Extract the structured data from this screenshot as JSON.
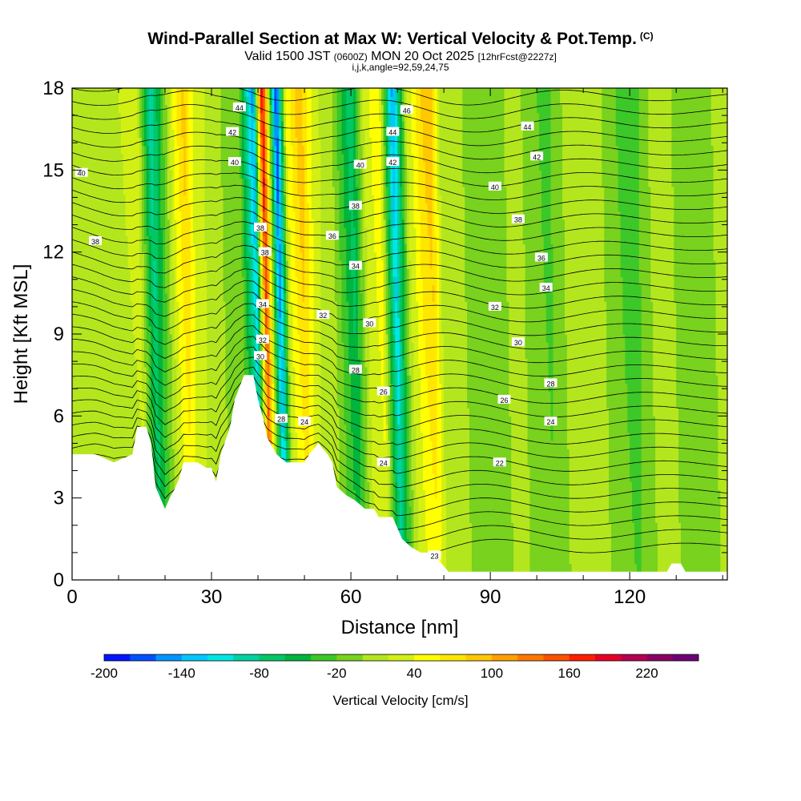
{
  "title": {
    "main": "Wind-Parallel Section at Max W: Vertical Velocity & Pot.Temp.",
    "copyright": "(C)",
    "valid_prefix": "Valid 1500 JST",
    "valid_utc": "(0600Z)",
    "valid_date": "MON 20 Oct 2025",
    "forecast": "[12hrFcst@2227z]",
    "indices": "i,j,k,angle=92,59,24,75"
  },
  "chart_data": {
    "type": "heatmap",
    "title": "Wind-Parallel Section at Max W: Vertical Velocity & Pot.Temp.",
    "xlabel": "Distance [nm]",
    "ylabel": "Height [Kft MSL]",
    "xlim": [
      0,
      141
    ],
    "ylim": [
      0,
      18
    ],
    "xticks": [
      0,
      30,
      60,
      90,
      120
    ],
    "yticks": [
      0,
      3,
      6,
      9,
      12,
      15,
      18
    ],
    "grid": false,
    "colorbar": {
      "label": "Vertical Velocity [cm/s]",
      "ticks": [
        -200,
        -140,
        -80,
        -20,
        40,
        100,
        160,
        220
      ],
      "levels": [
        -200,
        -180,
        -160,
        -140,
        -120,
        -100,
        -80,
        -60,
        -40,
        -20,
        0,
        20,
        40,
        60,
        80,
        100,
        120,
        140,
        160,
        180,
        200,
        220,
        240
      ],
      "colors": [
        "#0014ff",
        "#0050ff",
        "#0096ff",
        "#00c8ff",
        "#00e6e6",
        "#00d2a0",
        "#00c864",
        "#00b43c",
        "#3cc828",
        "#78d21e",
        "#b4e61e",
        "#d2f014",
        "#ffff00",
        "#ffe600",
        "#ffc800",
        "#ffa000",
        "#ff7800",
        "#ff5000",
        "#ff1e00",
        "#e60028",
        "#b40050",
        "#8c0064",
        "#6e0078"
      ]
    },
    "terrain": [
      [
        0,
        4.6
      ],
      [
        5,
        4.6
      ],
      [
        9,
        4.3
      ],
      [
        13,
        4.6
      ],
      [
        14,
        5.6
      ],
      [
        16,
        5.6
      ],
      [
        17,
        5.0
      ],
      [
        18,
        3.4
      ],
      [
        19,
        3.0
      ],
      [
        20,
        2.6
      ],
      [
        21,
        3.0
      ],
      [
        22,
        3.3
      ],
      [
        23,
        3.7
      ],
      [
        24,
        4.3
      ],
      [
        27,
        4.3
      ],
      [
        29,
        4.1
      ],
      [
        30,
        4.1
      ],
      [
        31,
        3.6
      ],
      [
        32,
        4.6
      ],
      [
        34,
        5.6
      ],
      [
        35,
        6.6
      ],
      [
        37,
        7.5
      ],
      [
        39,
        7.5
      ],
      [
        40,
        6.6
      ],
      [
        41,
        6.0
      ],
      [
        42,
        5.2
      ],
      [
        44,
        4.6
      ],
      [
        46,
        4.3
      ],
      [
        50,
        4.3
      ],
      [
        51,
        4.6
      ],
      [
        53,
        5.0
      ],
      [
        55,
        4.6
      ],
      [
        56,
        4.3
      ],
      [
        57,
        3.4
      ],
      [
        59,
        3.1
      ],
      [
        61,
        2.9
      ],
      [
        63,
        2.6
      ],
      [
        65,
        2.6
      ],
      [
        66,
        2.3
      ],
      [
        69,
        2.3
      ],
      [
        71,
        1.5
      ],
      [
        73,
        1.2
      ],
      [
        75,
        1.0
      ],
      [
        78,
        1.0
      ],
      [
        79,
        0.7
      ],
      [
        81,
        0.3
      ],
      [
        90,
        0.3
      ],
      [
        128,
        0.3
      ],
      [
        129,
        0.6
      ],
      [
        131,
        0.6
      ],
      [
        132,
        0.3
      ],
      [
        141,
        0.3
      ]
    ],
    "w_bands": [
      {
        "x": 0,
        "w": 0
      },
      {
        "x": 8,
        "w": 12
      },
      {
        "x": 15,
        "w": 30
      },
      {
        "x": 18,
        "w": -100
      },
      {
        "x": 23,
        "w": 50
      },
      {
        "x": 25,
        "w": 90
      },
      {
        "x": 27,
        "w": 40
      },
      {
        "x": 31,
        "w": 10
      },
      {
        "x": 37,
        "w": -20
      },
      {
        "x": 40,
        "w": -150
      },
      {
        "x": 42,
        "w": 200
      },
      {
        "x": 45,
        "w": -190
      },
      {
        "x": 47,
        "w": 40
      },
      {
        "x": 50,
        "w": 100
      },
      {
        "x": 53,
        "w": 30
      },
      {
        "x": 57,
        "w": 0
      },
      {
        "x": 61,
        "w": -80
      },
      {
        "x": 64,
        "w": 30
      },
      {
        "x": 67,
        "w": 60
      },
      {
        "x": 70,
        "w": -150
      },
      {
        "x": 73,
        "w": 20
      },
      {
        "x": 76,
        "w": 80
      },
      {
        "x": 78,
        "w": 100
      },
      {
        "x": 80,
        "w": 20
      },
      {
        "x": 85,
        "w": 0
      },
      {
        "x": 90,
        "w": -20
      },
      {
        "x": 96,
        "w": 10
      },
      {
        "x": 103,
        "w": -30
      },
      {
        "x": 108,
        "w": 15
      },
      {
        "x": 115,
        "w": 0
      },
      {
        "x": 121,
        "w": -40
      },
      {
        "x": 126,
        "w": 10
      },
      {
        "x": 134,
        "w": -10
      },
      {
        "x": 141,
        "w": 5
      }
    ],
    "theta_labels": [
      {
        "text": "44",
        "x": 36,
        "y": 17.3
      },
      {
        "text": "42",
        "x": 34.5,
        "y": 16.4
      },
      {
        "text": "40",
        "x": 35,
        "y": 15.3
      },
      {
        "text": "40",
        "x": 2,
        "y": 14.9
      },
      {
        "text": "38",
        "x": 5,
        "y": 12.4
      },
      {
        "text": "38",
        "x": 40.5,
        "y": 12.9
      },
      {
        "text": "38",
        "x": 41.5,
        "y": 12.0
      },
      {
        "text": "34",
        "x": 41,
        "y": 10.1
      },
      {
        "text": "32",
        "x": 41,
        "y": 8.8
      },
      {
        "text": "30",
        "x": 40.5,
        "y": 8.2
      },
      {
        "text": "28",
        "x": 45,
        "y": 5.9
      },
      {
        "text": "24",
        "x": 50,
        "y": 5.8
      },
      {
        "text": "36",
        "x": 56,
        "y": 12.6
      },
      {
        "text": "34",
        "x": 61,
        "y": 11.5
      },
      {
        "text": "32",
        "x": 54,
        "y": 9.7
      },
      {
        "text": "30",
        "x": 64,
        "y": 9.4
      },
      {
        "text": "28",
        "x": 61,
        "y": 7.7
      },
      {
        "text": "26",
        "x": 67,
        "y": 6.9
      },
      {
        "text": "24",
        "x": 67,
        "y": 4.3
      },
      {
        "text": "38",
        "x": 61,
        "y": 13.7
      },
      {
        "text": "40",
        "x": 62,
        "y": 15.2
      },
      {
        "text": "42",
        "x": 69,
        "y": 15.3
      },
      {
        "text": "44",
        "x": 69,
        "y": 16.4
      },
      {
        "text": "46",
        "x": 72,
        "y": 17.2
      },
      {
        "text": "44",
        "x": 98,
        "y": 16.6
      },
      {
        "text": "42",
        "x": 100,
        "y": 15.5
      },
      {
        "text": "40",
        "x": 91,
        "y": 14.4
      },
      {
        "text": "38",
        "x": 96,
        "y": 13.2
      },
      {
        "text": "36",
        "x": 101,
        "y": 11.8
      },
      {
        "text": "34",
        "x": 102,
        "y": 10.7
      },
      {
        "text": "32",
        "x": 91,
        "y": 10.0
      },
      {
        "text": "30",
        "x": 96,
        "y": 8.7
      },
      {
        "text": "28",
        "x": 103,
        "y": 7.2
      },
      {
        "text": "26",
        "x": 93,
        "y": 6.6
      },
      {
        "text": "24",
        "x": 103,
        "y": 5.8
      },
      {
        "text": "22",
        "x": 92,
        "y": 4.3
      },
      {
        "text": "23",
        "x": 78,
        "y": 0.9
      }
    ]
  }
}
